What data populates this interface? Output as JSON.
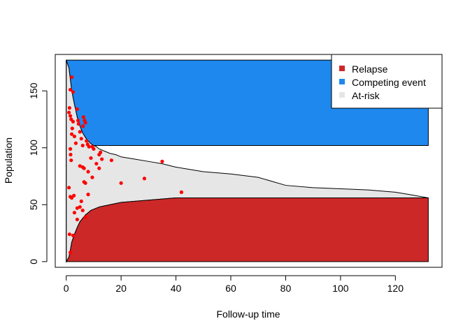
{
  "chart_data": {
    "type": "area",
    "title": "",
    "xlabel": "Follow-up time",
    "ylabel": "Population",
    "xlim": [
      -4,
      137
    ],
    "ylim": [
      -5,
      182
    ],
    "x_ticks": [
      0,
      20,
      40,
      60,
      80,
      100,
      120
    ],
    "y_ticks": [
      0,
      50,
      100,
      150
    ],
    "total_population": 177,
    "grid": false,
    "legend_position": "top-right",
    "colors": {
      "relapse": "#cc2828",
      "competing": "#1e88ee",
      "at_risk": "#e6e6e6",
      "points": "#ff0000"
    },
    "legend": [
      "Relapse",
      "Competing event",
      "At-risk"
    ],
    "series": [
      {
        "name": "Relapse",
        "description_role": "cumulative relapse count (bottom boundary of at-risk band)",
        "x": [
          0,
          1,
          1.5,
          2,
          3,
          4,
          5,
          6,
          7,
          8,
          9,
          10,
          11,
          12,
          14,
          16,
          18,
          20,
          25,
          30,
          35,
          40,
          50,
          60,
          80,
          100,
          120,
          132
        ],
        "values": [
          0,
          4,
          10,
          17,
          24,
          30,
          35,
          38,
          41,
          43,
          45,
          46,
          47,
          48,
          49,
          50,
          51,
          52,
          53,
          54,
          55,
          56,
          56,
          56,
          56,
          56,
          56,
          56
        ]
      },
      {
        "name": "Competing event",
        "description_role": "top boundary of at-risk band (177 minus competing events)",
        "x": [
          0,
          1,
          1.5,
          2,
          3,
          4,
          5,
          6,
          7,
          8,
          9,
          10,
          11,
          12,
          14,
          16,
          18,
          20,
          25,
          30,
          35,
          40,
          45,
          50,
          60,
          70,
          80,
          90,
          100,
          110,
          120,
          125,
          132
        ],
        "values": [
          177,
          170,
          160,
          150,
          138,
          127,
          119,
          113,
          109,
          106,
          103.5,
          102,
          101,
          99,
          97,
          95,
          94,
          92,
          90,
          88,
          86,
          83,
          81,
          79,
          77,
          74,
          67,
          65,
          64,
          63,
          61,
          59,
          56
        ]
      }
    ],
    "competing_ceiling": 102,
    "competing_ceiling_start": 19,
    "points": [
      [
        1.2,
        135
      ],
      [
        1.5,
        128
      ],
      [
        1,
        131
      ],
      [
        2,
        162
      ],
      [
        1.5,
        151
      ],
      [
        2.5,
        149
      ],
      [
        1.8,
        125
      ],
      [
        2.2,
        117
      ],
      [
        2,
        112
      ],
      [
        1.5,
        99
      ],
      [
        1.6,
        94
      ],
      [
        1.8,
        89
      ],
      [
        2.5,
        123
      ],
      [
        3,
        110
      ],
      [
        3.5,
        104
      ],
      [
        4,
        134
      ],
      [
        4.3,
        124
      ],
      [
        4.5,
        121
      ],
      [
        5,
        114
      ],
      [
        5.5,
        108
      ],
      [
        6,
        102
      ],
      [
        6.3,
        127
      ],
      [
        6.7,
        124
      ],
      [
        6.1,
        119
      ],
      [
        7,
        122
      ],
      [
        7.4,
        106
      ],
      [
        7.8,
        103
      ],
      [
        8.3,
        101
      ],
      [
        9.5,
        101
      ],
      [
        10,
        99
      ],
      [
        12.5,
        96
      ],
      [
        12,
        94
      ],
      [
        9,
        91
      ],
      [
        13,
        90
      ],
      [
        16.5,
        89
      ],
      [
        11,
        86
      ],
      [
        5,
        84
      ],
      [
        6,
        83
      ],
      [
        6.5,
        82
      ],
      [
        12,
        82
      ],
      [
        8,
        79
      ],
      [
        9.5,
        74
      ],
      [
        6.5,
        70
      ],
      [
        7,
        69
      ],
      [
        20,
        69
      ],
      [
        28.5,
        73
      ],
      [
        35,
        88
      ],
      [
        42,
        61
      ],
      [
        1,
        65
      ],
      [
        1.5,
        57
      ],
      [
        2,
        56
      ],
      [
        3,
        43
      ],
      [
        4,
        47
      ],
      [
        5,
        48
      ],
      [
        5.5,
        53
      ],
      [
        6,
        45
      ],
      [
        7,
        39
      ],
      [
        8,
        59
      ],
      [
        4,
        37
      ],
      [
        1.2,
        24
      ],
      [
        2.5,
        23
      ],
      [
        1.5,
        8
      ],
      [
        2.8,
        58
      ]
    ]
  }
}
